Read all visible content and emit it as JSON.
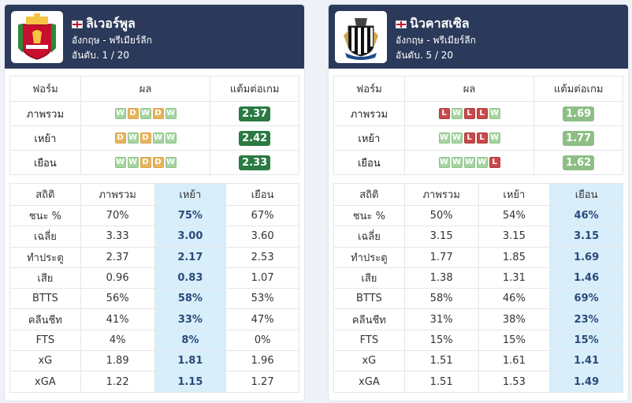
{
  "teams": [
    {
      "name": "ลิเวอร์พูล",
      "league": "อังกฤษ - พรีเมียร์ลีก",
      "rank_label": "อันดับ.",
      "rank": "1 / 20",
      "logo": "liverpool-crest-icon",
      "form_headers": [
        "ฟอร์ม",
        "ผล",
        "แต้มต่อเกม"
      ],
      "form_rows": [
        {
          "label": "ภาพรวม",
          "results": [
            "W",
            "D",
            "W",
            "D",
            "W"
          ],
          "ppg": "2.37",
          "ppg_color": "#2a7a42"
        },
        {
          "label": "เหย้า",
          "results": [
            "D",
            "W",
            "D",
            "W",
            "W"
          ],
          "ppg": "2.42",
          "ppg_color": "#2a7a42"
        },
        {
          "label": "เยือน",
          "results": [
            "W",
            "W",
            "D",
            "D",
            "W"
          ],
          "ppg": "2.33",
          "ppg_color": "#2a7a42"
        }
      ],
      "stats_headers": [
        "สถิติ",
        "ภาพรวม",
        "เหย้า",
        "เยือน"
      ],
      "highlight_col": 2,
      "stats_rows": [
        {
          "label": "ชนะ %",
          "values": [
            "70%",
            "75%",
            "67%"
          ]
        },
        {
          "label": "เฉลี่ย",
          "values": [
            "3.33",
            "3.00",
            "3.60"
          ]
        },
        {
          "label": "ทำประตู",
          "values": [
            "2.37",
            "2.17",
            "2.53"
          ]
        },
        {
          "label": "เสีย",
          "values": [
            "0.96",
            "0.83",
            "1.07"
          ]
        },
        {
          "label": "BTTS",
          "values": [
            "56%",
            "58%",
            "53%"
          ]
        },
        {
          "label": "คลีนชีท",
          "values": [
            "41%",
            "33%",
            "47%"
          ]
        },
        {
          "label": "FTS",
          "values": [
            "4%",
            "8%",
            "0%"
          ]
        },
        {
          "label": "xG",
          "values": [
            "1.89",
            "1.81",
            "1.96"
          ]
        },
        {
          "label": "xGA",
          "values": [
            "1.22",
            "1.15",
            "1.27"
          ]
        }
      ]
    },
    {
      "name": "นิวคาสเซิล",
      "league": "อังกฤษ - พรีเมียร์ลีก",
      "rank_label": "อันดับ.",
      "rank": "5 / 20",
      "logo": "newcastle-crest-icon",
      "form_headers": [
        "ฟอร์ม",
        "ผล",
        "แต้มต่อเกม"
      ],
      "form_rows": [
        {
          "label": "ภาพรวม",
          "results": [
            "L",
            "W",
            "L",
            "L",
            "W"
          ],
          "ppg": "1.69",
          "ppg_color": "#8dbe85"
        },
        {
          "label": "เหย้า",
          "results": [
            "W",
            "W",
            "L",
            "L",
            "W"
          ],
          "ppg": "1.77",
          "ppg_color": "#8dbe85"
        },
        {
          "label": "เยือน",
          "results": [
            "W",
            "W",
            "W",
            "W",
            "L"
          ],
          "ppg": "1.62",
          "ppg_color": "#8dbe85"
        }
      ],
      "stats_headers": [
        "สถิติ",
        "ภาพรวม",
        "เหย้า",
        "เยือน"
      ],
      "highlight_col": 3,
      "stats_rows": [
        {
          "label": "ชนะ %",
          "values": [
            "50%",
            "54%",
            "46%"
          ]
        },
        {
          "label": "เฉลี่ย",
          "values": [
            "3.15",
            "3.15",
            "3.15"
          ]
        },
        {
          "label": "ทำประตู",
          "values": [
            "1.77",
            "1.85",
            "1.69"
          ]
        },
        {
          "label": "เสีย",
          "values": [
            "1.38",
            "1.31",
            "1.46"
          ]
        },
        {
          "label": "BTTS",
          "values": [
            "58%",
            "46%",
            "69%"
          ]
        },
        {
          "label": "คลีนชีท",
          "values": [
            "31%",
            "38%",
            "23%"
          ]
        },
        {
          "label": "FTS",
          "values": [
            "15%",
            "15%",
            "15%"
          ]
        },
        {
          "label": "xG",
          "values": [
            "1.51",
            "1.61",
            "1.41"
          ]
        },
        {
          "label": "xGA",
          "values": [
            "1.51",
            "1.53",
            "1.49"
          ]
        }
      ]
    }
  ]
}
